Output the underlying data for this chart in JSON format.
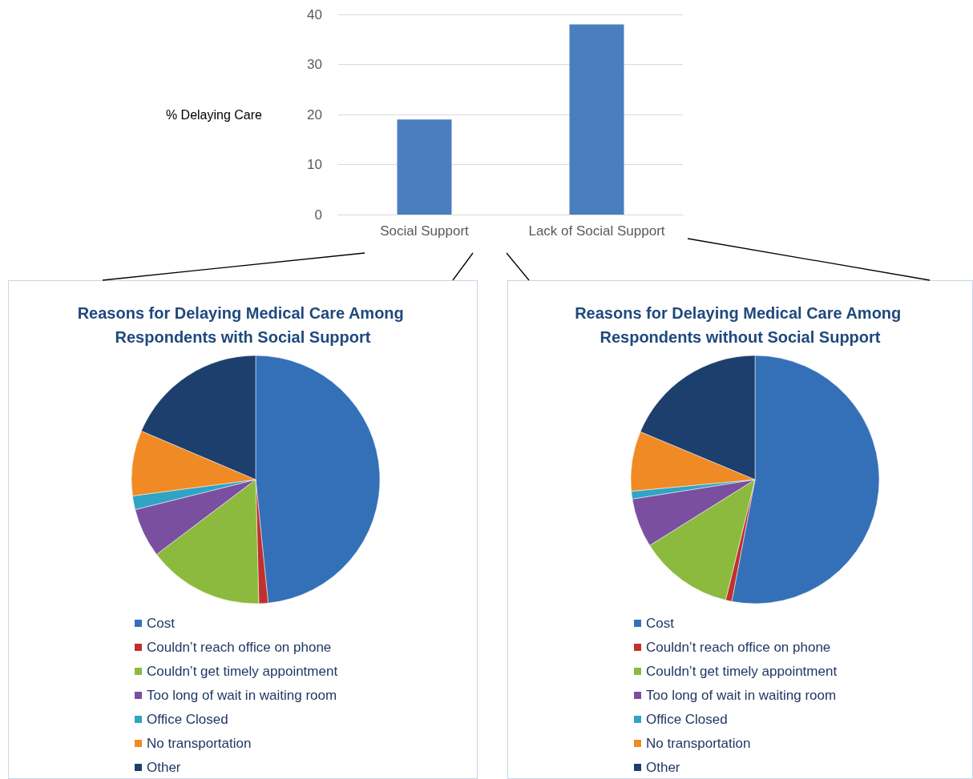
{
  "chart_data": [
    {
      "type": "bar",
      "ylabel": "% Delaying Care",
      "categories": [
        "Social Support",
        "Lack of Social Support"
      ],
      "values": [
        19,
        38
      ],
      "color": "#4a7ebf",
      "ylim": [
        0,
        40
      ],
      "yticks": [
        0,
        10,
        20,
        30,
        40
      ],
      "grid": "y"
    },
    {
      "type": "pie",
      "title": "Reasons for Delaying Medical Care Among Respondents with Social Support",
      "categories": [
        "Cost",
        "Couldn’t reach office on phone",
        "Couldn’t get timely appointment",
        "Too long of wait in waiting room",
        "Office Closed",
        "No transportation",
        "Other"
      ],
      "values": [
        48.4,
        1.2,
        15.1,
        6.4,
        1.8,
        8.5,
        18.6
      ],
      "colors": [
        "#3470b8",
        "#c0302e",
        "#8cba3f",
        "#7a4fa0",
        "#2fa4c4",
        "#f08a24",
        "#1c3f6e"
      ],
      "legend": "bottom"
    },
    {
      "type": "pie",
      "title": "Reasons for Delaying Medical Care Among Respondents without Social Support",
      "categories": [
        "Cost",
        "Couldn’t reach office on phone",
        "Couldn’t get timely appointment",
        "Too long of wait in waiting room",
        "Office Closed",
        "No transportation",
        "Other"
      ],
      "values": [
        53.0,
        0.8,
        12.3,
        6.4,
        1.0,
        7.8,
        18.7
      ],
      "colors": [
        "#3470b8",
        "#c0302e",
        "#8cba3f",
        "#7a4fa0",
        "#2fa4c4",
        "#f08a24",
        "#1c3f6e"
      ],
      "legend": "bottom"
    }
  ]
}
